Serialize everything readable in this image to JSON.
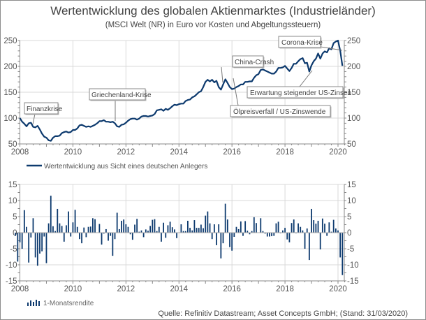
{
  "title": "Wertentwicklung des globalen Aktienmarktes (Industrieländer)",
  "subtitle": "(MSCI Welt (NR) in Euro vor Kosten und Abgeltungssteuern)",
  "source": "Quelle: Refinitiv Datastream; Asset Concepts GmbH; (Stand: 31/03/2020)",
  "colors": {
    "series": "#0d3a6e",
    "grid": "#d9d9d9",
    "axis": "#888888",
    "border": "#8c8c8c"
  },
  "chart_data": [
    {
      "type": "line",
      "start": "2008-01",
      "frequency": "monthly",
      "legend": "Wertentwicklung aus Sicht eines deutschen Anlegers",
      "xticks": [
        "2008",
        "2010",
        "2012",
        "2014",
        "2016",
        "2018",
        "2020"
      ],
      "yticks": [
        "50",
        "100",
        "150",
        "200",
        "250"
      ],
      "ylim": [
        50,
        250
      ],
      "values": [
        100,
        93,
        89,
        84,
        90,
        91,
        83,
        82,
        85,
        78,
        70,
        64,
        62,
        57,
        56,
        62,
        65,
        65,
        66,
        71,
        73,
        74,
        72,
        73,
        77,
        77,
        80,
        86,
        87,
        85,
        83,
        84,
        83,
        85,
        87,
        90,
        94,
        94,
        96,
        93,
        93,
        92,
        93,
        90,
        84,
        83,
        87,
        88,
        91,
        95,
        98,
        99,
        99,
        97,
        99,
        103,
        104,
        104,
        103,
        104,
        105,
        108,
        115,
        116,
        117,
        114,
        118,
        116,
        119,
        123,
        126,
        125,
        127,
        128,
        128,
        133,
        135,
        136,
        140,
        142,
        146,
        150,
        152,
        160,
        170,
        174,
        171,
        174,
        169,
        172,
        160,
        155,
        165,
        175,
        168,
        160,
        156,
        157,
        160,
        162,
        165,
        165,
        170,
        170,
        171,
        171,
        178,
        183,
        185,
        193,
        194,
        192,
        190,
        188,
        186,
        186,
        190,
        197,
        197,
        198,
        201,
        196,
        191,
        197,
        205,
        205,
        210,
        214,
        216,
        206,
        207,
        190,
        202,
        210,
        215,
        225,
        215,
        225,
        229,
        227,
        235,
        233,
        245,
        248,
        250,
        230,
        201
      ],
      "annotations": [
        {
          "label": "Finanzkrise",
          "date": "2008-07"
        },
        {
          "label": "Griechenland-Krise",
          "date": "2011-08"
        },
        {
          "label": "China-Crash",
          "date": "2015-08"
        },
        {
          "label": "Ölpreisverfall / US-Zinswende",
          "date": "2016-01"
        },
        {
          "label": "Erwartung steigender US-Zinsen",
          "date": "2018-12"
        },
        {
          "label": "Corona-Krise",
          "date": "2020-02"
        }
      ]
    },
    {
      "type": "bar",
      "frequency": "monthly",
      "end": "2020-03",
      "legend": "1-Monatsrendite",
      "xticks": [
        "2008",
        "2010",
        "2012",
        "2014",
        "2016",
        "2018",
        "2020"
      ],
      "yticks": [
        "15",
        "10",
        "5",
        "0",
        "-5",
        "-10",
        "-15"
      ],
      "ylim": [
        -15,
        15
      ],
      "values": [
        -1,
        -9,
        -3,
        -5,
        7,
        1.8,
        -9.3,
        -1.5,
        4.5,
        -7.7,
        -10.3,
        -6.5,
        -5.8,
        -1.2,
        -9.5,
        2.9,
        11.5,
        2,
        0.5,
        7.4,
        2.9,
        2.1,
        -2.8,
        2.3,
        6.6,
        -1.2,
        3.2,
        7.1,
        1.8,
        -2,
        -3.3,
        1.6,
        -1.4,
        1.8,
        1.9,
        4.5,
        4.2,
        0,
        2.7,
        -3.7,
        -0.3,
        1.1,
        -2.5,
        -1,
        -7.2,
        -2,
        6.2,
        1.1,
        3.7,
        4.1,
        2.6,
        1.8,
        -0.5,
        -2.2,
        2.5,
        4.3,
        0.3,
        0.7,
        -1.4,
        1,
        0.6,
        2.1,
        4,
        4.2,
        0.5,
        1.8,
        -2.8,
        3.1,
        -1.6,
        2.3,
        3.4,
        1.7,
        1,
        -1.7,
        0,
        2.6,
        0.5,
        0.5,
        3.7,
        1.5,
        0.7,
        3.9,
        1.5,
        1.5,
        2.5,
        1.4,
        5.3,
        6.6,
        2.9,
        -2,
        2.6,
        -3.9,
        2.6,
        -8,
        -3.3,
        9,
        4.1,
        -4.5,
        -5.6,
        -1.3,
        1.8,
        1.1,
        3.5,
        -1,
        3.6,
        0.6,
        -0.5,
        0.5,
        4.8,
        3,
        0,
        4.5,
        0.5,
        -0.3,
        -1.2,
        -1.2,
        -1.1,
        -1,
        2.9,
        3.4,
        -0.2,
        0.7,
        1.5,
        -2.1,
        -3,
        3,
        4.1,
        -0.2,
        2.9,
        1.8,
        0.7,
        -5,
        1.3,
        -8.5,
        7.4,
        3.9,
        2.8,
        3.7,
        -5.2,
        4.4,
        2.8,
        -1,
        3.2,
        0.3,
        4,
        1.3,
        0.7,
        -7.7,
        -13.2
      ]
    }
  ]
}
